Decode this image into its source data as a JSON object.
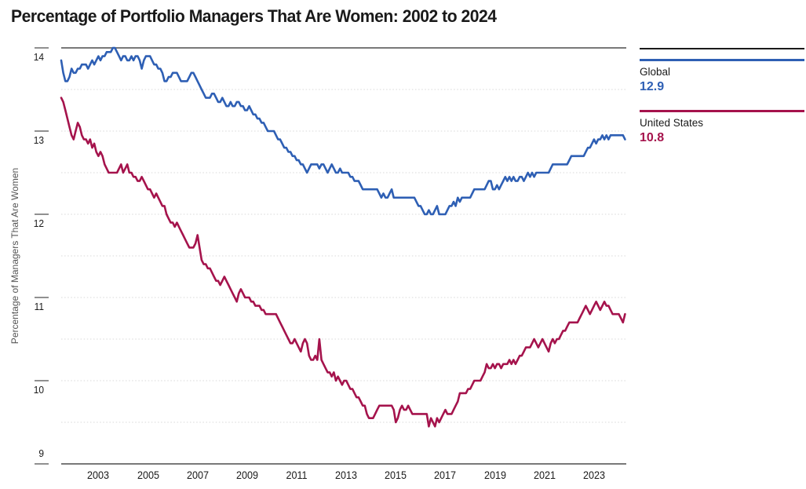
{
  "chart_data": {
    "type": "line",
    "title": "Percentage of Portfolio Managers That Are Women: 2002 to 2024",
    "ylabel": "Percentage of Managers That Are Women",
    "ylim": [
      9,
      14
    ],
    "yticks": [
      14,
      13,
      12,
      11,
      10,
      9
    ],
    "grid_step": 0.5,
    "grid_style": "dotted",
    "xticks": [
      2003,
      2005,
      2007,
      2009,
      2011,
      2013,
      2015,
      2017,
      2019,
      2021,
      2023
    ],
    "x_start_year": 2002,
    "x_frequency": "monthly",
    "legend_position": "right",
    "axis_color": "#4d4d4d",
    "gridline_color": "#d8d8d8",
    "series": [
      {
        "name": "Global",
        "display_value": "12.9",
        "color": "#2e5fb4",
        "values": [
          13.85,
          13.7,
          13.6,
          13.6,
          13.65,
          13.75,
          13.7,
          13.7,
          13.75,
          13.75,
          13.8,
          13.8,
          13.8,
          13.75,
          13.8,
          13.85,
          13.8,
          13.85,
          13.9,
          13.85,
          13.9,
          13.9,
          13.95,
          13.95,
          13.95,
          14,
          14,
          13.95,
          13.9,
          13.85,
          13.9,
          13.9,
          13.85,
          13.85,
          13.9,
          13.85,
          13.9,
          13.9,
          13.85,
          13.75,
          13.85,
          13.9,
          13.9,
          13.9,
          13.85,
          13.8,
          13.8,
          13.75,
          13.75,
          13.7,
          13.6,
          13.6,
          13.65,
          13.65,
          13.7,
          13.7,
          13.7,
          13.65,
          13.6,
          13.6,
          13.6,
          13.6,
          13.65,
          13.7,
          13.7,
          13.65,
          13.6,
          13.55,
          13.5,
          13.45,
          13.4,
          13.4,
          13.4,
          13.45,
          13.45,
          13.4,
          13.35,
          13.35,
          13.4,
          13.35,
          13.3,
          13.3,
          13.35,
          13.3,
          13.3,
          13.35,
          13.35,
          13.3,
          13.3,
          13.25,
          13.25,
          13.3,
          13.25,
          13.2,
          13.2,
          13.15,
          13.15,
          13.1,
          13.1,
          13.05,
          13,
          13,
          13,
          13,
          12.95,
          12.9,
          12.9,
          12.85,
          12.8,
          12.8,
          12.75,
          12.75,
          12.7,
          12.7,
          12.65,
          12.65,
          12.6,
          12.6,
          12.55,
          12.5,
          12.55,
          12.6,
          12.6,
          12.6,
          12.6,
          12.55,
          12.6,
          12.6,
          12.55,
          12.5,
          12.55,
          12.6,
          12.55,
          12.5,
          12.5,
          12.55,
          12.5,
          12.5,
          12.5,
          12.5,
          12.45,
          12.45,
          12.4,
          12.4,
          12.4,
          12.35,
          12.3,
          12.3,
          12.3,
          12.3,
          12.3,
          12.3,
          12.3,
          12.3,
          12.25,
          12.2,
          12.25,
          12.2,
          12.2,
          12.25,
          12.3,
          12.2,
          12.2,
          12.2,
          12.2,
          12.2,
          12.2,
          12.2,
          12.2,
          12.2,
          12.2,
          12.2,
          12.15,
          12.1,
          12.1,
          12.05,
          12,
          12,
          12.05,
          12,
          12,
          12.05,
          12.1,
          12,
          12,
          12,
          12,
          12.05,
          12.1,
          12.1,
          12.15,
          12.1,
          12.2,
          12.15,
          12.2,
          12.2,
          12.2,
          12.2,
          12.2,
          12.25,
          12.3,
          12.3,
          12.3,
          12.3,
          12.3,
          12.3,
          12.35,
          12.4,
          12.4,
          12.3,
          12.3,
          12.35,
          12.3,
          12.35,
          12.4,
          12.45,
          12.4,
          12.45,
          12.4,
          12.45,
          12.4,
          12.4,
          12.45,
          12.45,
          12.4,
          12.45,
          12.5,
          12.45,
          12.5,
          12.45,
          12.5,
          12.5,
          12.5,
          12.5,
          12.5,
          12.5,
          12.5,
          12.55,
          12.6,
          12.6,
          12.6,
          12.6,
          12.6,
          12.6,
          12.6,
          12.6,
          12.65,
          12.7,
          12.7,
          12.7,
          12.7,
          12.7,
          12.7,
          12.7,
          12.75,
          12.8,
          12.8,
          12.85,
          12.9,
          12.85,
          12.9,
          12.9,
          12.95,
          12.9,
          12.95,
          12.9,
          12.95,
          12.95,
          12.95,
          12.95,
          12.95,
          12.95,
          12.95,
          12.9
        ]
      },
      {
        "name": "United States",
        "display_value": "10.8",
        "color": "#a5134c",
        "values": [
          13.4,
          13.35,
          13.25,
          13.15,
          13.05,
          12.95,
          12.9,
          13,
          13.1,
          13.05,
          12.95,
          12.9,
          12.9,
          12.85,
          12.9,
          12.8,
          12.85,
          12.75,
          12.7,
          12.75,
          12.7,
          12.6,
          12.55,
          12.5,
          12.5,
          12.5,
          12.5,
          12.5,
          12.55,
          12.6,
          12.5,
          12.55,
          12.6,
          12.5,
          12.5,
          12.45,
          12.45,
          12.4,
          12.4,
          12.45,
          12.4,
          12.35,
          12.3,
          12.3,
          12.25,
          12.2,
          12.25,
          12.2,
          12.15,
          12.1,
          12.1,
          12,
          11.95,
          11.9,
          11.9,
          11.85,
          11.9,
          11.85,
          11.8,
          11.75,
          11.7,
          11.65,
          11.6,
          11.6,
          11.6,
          11.65,
          11.75,
          11.6,
          11.45,
          11.4,
          11.4,
          11.35,
          11.35,
          11.3,
          11.25,
          11.2,
          11.2,
          11.15,
          11.2,
          11.25,
          11.2,
          11.15,
          11.1,
          11.05,
          11,
          10.95,
          11.05,
          11.1,
          11.05,
          11,
          11,
          11,
          10.95,
          10.95,
          10.9,
          10.9,
          10.9,
          10.85,
          10.85,
          10.8,
          10.8,
          10.8,
          10.8,
          10.8,
          10.8,
          10.75,
          10.7,
          10.65,
          10.6,
          10.55,
          10.5,
          10.45,
          10.45,
          10.5,
          10.45,
          10.4,
          10.35,
          10.45,
          10.5,
          10.45,
          10.3,
          10.25,
          10.25,
          10.3,
          10.25,
          10.5,
          10.25,
          10.2,
          10.15,
          10.1,
          10.1,
          10.05,
          10.1,
          10,
          10.05,
          10,
          9.95,
          10,
          10,
          9.95,
          9.9,
          9.9,
          9.85,
          9.8,
          9.8,
          9.75,
          9.7,
          9.7,
          9.6,
          9.55,
          9.55,
          9.55,
          9.6,
          9.65,
          9.7,
          9.7,
          9.7,
          9.7,
          9.7,
          9.7,
          9.7,
          9.65,
          9.5,
          9.55,
          9.65,
          9.7,
          9.65,
          9.65,
          9.7,
          9.65,
          9.6,
          9.6,
          9.6,
          9.6,
          9.6,
          9.6,
          9.6,
          9.6,
          9.45,
          9.55,
          9.5,
          9.45,
          9.55,
          9.5,
          9.55,
          9.6,
          9.65,
          9.6,
          9.6,
          9.6,
          9.65,
          9.7,
          9.75,
          9.85,
          9.85,
          9.85,
          9.85,
          9.9,
          9.9,
          9.95,
          10,
          10,
          10,
          10,
          10.05,
          10.1,
          10.2,
          10.15,
          10.15,
          10.2,
          10.15,
          10.2,
          10.2,
          10.15,
          10.2,
          10.2,
          10.2,
          10.25,
          10.2,
          10.25,
          10.2,
          10.25,
          10.3,
          10.3,
          10.35,
          10.4,
          10.4,
          10.4,
          10.45,
          10.5,
          10.45,
          10.4,
          10.45,
          10.5,
          10.45,
          10.4,
          10.35,
          10.45,
          10.5,
          10.45,
          10.5,
          10.5,
          10.55,
          10.6,
          10.6,
          10.65,
          10.7,
          10.7,
          10.7,
          10.7,
          10.7,
          10.75,
          10.8,
          10.85,
          10.9,
          10.85,
          10.8,
          10.85,
          10.9,
          10.95,
          10.9,
          10.85,
          10.9,
          10.95,
          10.9,
          10.9,
          10.85,
          10.8,
          10.8,
          10.8,
          10.8,
          10.75,
          10.7,
          10.8
        ]
      }
    ]
  }
}
